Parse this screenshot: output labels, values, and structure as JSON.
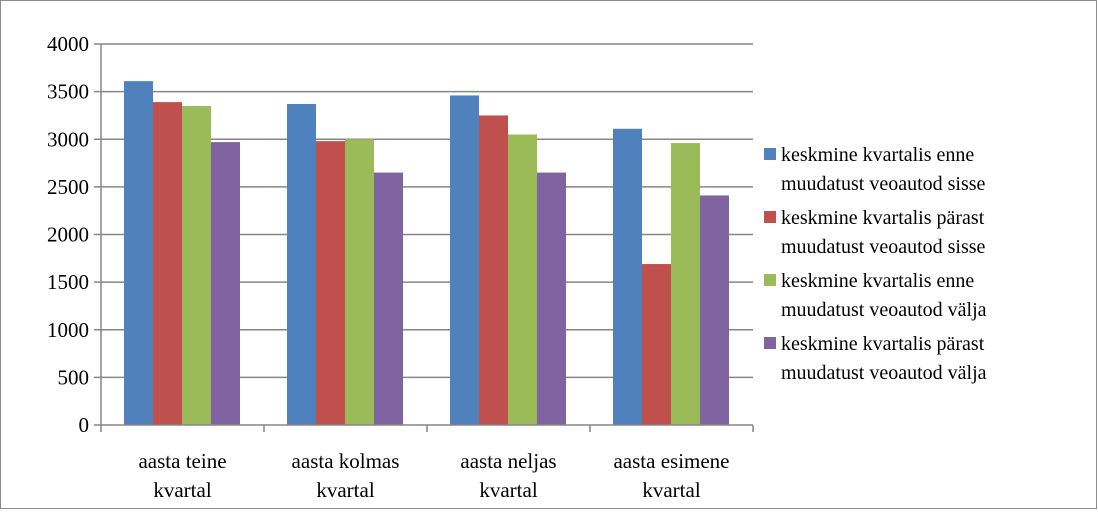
{
  "chart_data": {
    "type": "bar",
    "title": "",
    "xlabel": "",
    "ylabel": "",
    "ylim": [
      0,
      4000
    ],
    "yticks": [
      0,
      500,
      1000,
      1500,
      2000,
      2500,
      3000,
      3500,
      4000
    ],
    "grid": true,
    "legend_position": "right",
    "categories": [
      [
        "aasta teine",
        "kvartal"
      ],
      [
        "aasta kolmas",
        "kvartal"
      ],
      [
        "aasta neljas",
        "kvartal"
      ],
      [
        "aasta esimene",
        "kvartal"
      ]
    ],
    "series": [
      {
        "name": [
          "keskmine kvartalis enne",
          "muudatust veoautod sisse"
        ],
        "color": "#4f81bd",
        "values": [
          3610,
          3370,
          3460,
          3110
        ]
      },
      {
        "name": [
          "keskmine kvartalis pärast",
          "muudatust veoautod sisse"
        ],
        "color": "#c0504d",
        "values": [
          3390,
          2980,
          3250,
          1690
        ]
      },
      {
        "name": [
          "keskmine kvartalis enne",
          "muudatust veoautod välja"
        ],
        "color": "#9bbb59",
        "values": [
          3350,
          3000,
          3050,
          2960
        ]
      },
      {
        "name": [
          "keskmine kvartalis pärast",
          "muudatust veoautod välja"
        ],
        "color": "#8064a2",
        "values": [
          2970,
          2650,
          2650,
          2410
        ]
      }
    ]
  }
}
